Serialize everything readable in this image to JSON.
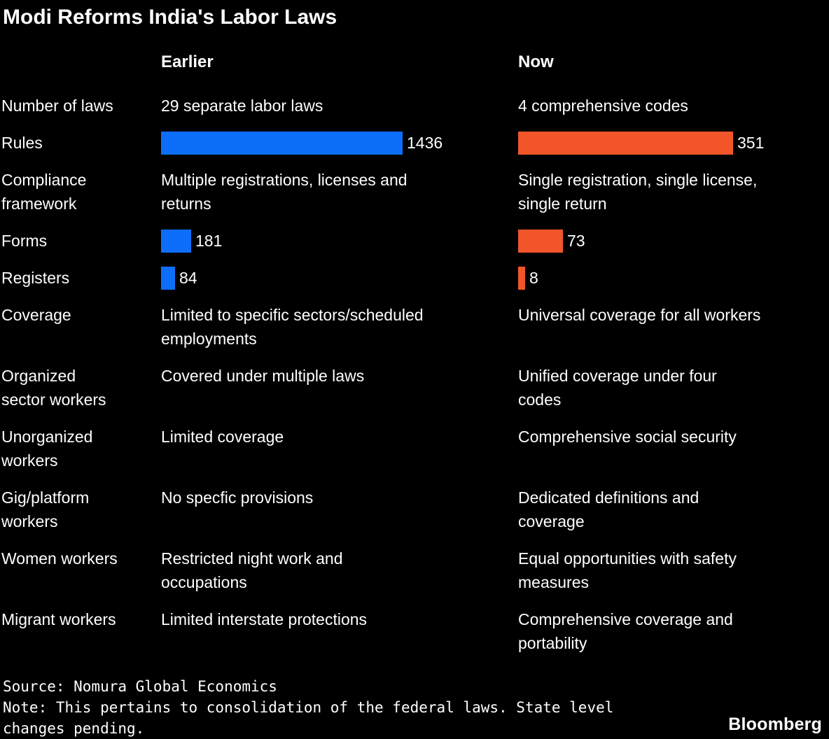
{
  "title": "Modi Reforms India's Labor Laws",
  "columns": {
    "earlier": "Earlier",
    "now": "Now"
  },
  "colors": {
    "earlier_bar": "#0d6efa",
    "now_bar": "#f2552a",
    "background": "#000000",
    "text": "#ffffff"
  },
  "rows": [
    {
      "label": "Number of laws",
      "type": "text",
      "earlier": "29 separate labor laws",
      "now": "4 comprehensive codes"
    },
    {
      "label": "Rules",
      "type": "bar",
      "earlier_value": 1436,
      "now_value": 351
    },
    {
      "label": "Compliance\nframework",
      "type": "text",
      "earlier": "Multiple registrations, licenses and\nreturns",
      "now": "Single registration, single license,\nsingle return"
    },
    {
      "label": "Forms",
      "type": "bar",
      "earlier_value": 181,
      "now_value": 73
    },
    {
      "label": "Registers",
      "type": "bar",
      "earlier_value": 84,
      "now_value": 8
    },
    {
      "label": "Coverage",
      "type": "text",
      "earlier": "Limited to specific sectors/scheduled\nemployments",
      "now": "Universal coverage for all workers"
    },
    {
      "label": "Organized\nsector workers",
      "type": "text",
      "earlier": "Covered under multiple laws",
      "now": "Unified coverage under four\ncodes"
    },
    {
      "label": "Unorganized\nworkers",
      "type": "text",
      "earlier": "Limited coverage",
      "now": "Comprehensive social security"
    },
    {
      "label": "Gig/platform\nworkers",
      "type": "text",
      "earlier": "No specfic provisions",
      "now": "Dedicated definitions and\ncoverage"
    },
    {
      "label": "Women workers",
      "type": "text",
      "earlier": "Restricted night work and\noccupations",
      "now": "Equal opportunities with safety\nmeasures"
    },
    {
      "label": "Migrant workers",
      "type": "text",
      "earlier": "Limited interstate protections",
      "now": "Comprehensive coverage and\nportability"
    }
  ],
  "footer": {
    "source": "Source: Nomura Global Economics",
    "note": "Note: This pertains to consolidation of the federal laws. State level\nchanges pending.",
    "brand": "Bloomberg"
  },
  "chart_data": {
    "type": "bar",
    "orientation": "horizontal",
    "title": "Modi Reforms India's Labor Laws",
    "categories": [
      "Rules",
      "Forms",
      "Registers"
    ],
    "series": [
      {
        "name": "Earlier",
        "color": "#0d6efa",
        "values": [
          1436,
          181,
          84
        ]
      },
      {
        "name": "Now",
        "color": "#f2552a",
        "values": [
          351,
          73,
          8
        ]
      }
    ],
    "value_labels": true,
    "legend_position": "column-headers",
    "grid": false,
    "scaling_note": "Each column's bars are scaled independently to that column's maximum value",
    "table_rows": [
      [
        "Number of laws",
        "29 separate labor laws",
        "4 comprehensive codes"
      ],
      [
        "Rules",
        1436,
        351
      ],
      [
        "Compliance framework",
        "Multiple registrations, licenses and returns",
        "Single registration, single license, single return"
      ],
      [
        "Forms",
        181,
        73
      ],
      [
        "Registers",
        84,
        8
      ],
      [
        "Coverage",
        "Limited to specific sectors/scheduled employments",
        "Universal coverage for all workers"
      ],
      [
        "Organized sector workers",
        "Covered under multiple laws",
        "Unified coverage under four codes"
      ],
      [
        "Unorganized workers",
        "Limited coverage",
        "Comprehensive social security"
      ],
      [
        "Gig/platform workers",
        "No specfic provisions",
        "Dedicated definitions and coverage"
      ],
      [
        "Women workers",
        "Restricted night work and occupations",
        "Equal opportunities with safety measures"
      ],
      [
        "Migrant workers",
        "Limited interstate protections",
        "Comprehensive coverage and portability"
      ]
    ]
  }
}
